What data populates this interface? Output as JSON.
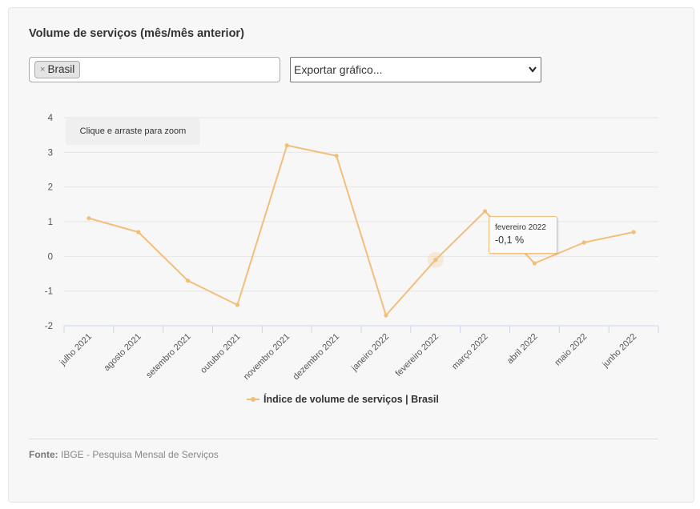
{
  "page": {
    "title": "Volume de serviços (mês/mês anterior)",
    "filter": {
      "chip_label": "Brasil",
      "remove_glyph": "×"
    },
    "export": {
      "label": "Exportar gráfico...",
      "chevron_icon": "chevron-down-icon"
    },
    "zoom_hint": "Clique e arraste para zoom",
    "tooltip": {
      "date": "fevereiro 2022",
      "value": "-0,1 %"
    },
    "source": {
      "label": "Fonte:",
      "text": "IBGE - Pesquisa Mensal de Serviços"
    }
  },
  "chart_data": {
    "type": "line",
    "title": "Volume de serviços (mês/mês anterior)",
    "categories": [
      "julho 2021",
      "agosto 2021",
      "setembro 2021",
      "outubro 2021",
      "novembro 2021",
      "dezembro 2021",
      "janeiro 2022",
      "fevereiro 2022",
      "março 2022",
      "abril 2022",
      "maio 2022",
      "junho 2022"
    ],
    "series": [
      {
        "name": "Índice de volume de serviços | Brasil",
        "values": [
          1.1,
          0.7,
          -0.7,
          -1.4,
          3.2,
          2.9,
          -1.7,
          -0.1,
          1.3,
          -0.2,
          0.4,
          0.7
        ],
        "color": "#f1bf7a"
      }
    ],
    "yticks": [
      4,
      3,
      2,
      1,
      0,
      -1,
      -2
    ],
    "ylim": [
      -2,
      4
    ],
    "grid": true,
    "legend": "bottom-center",
    "highlight_index": 7
  }
}
